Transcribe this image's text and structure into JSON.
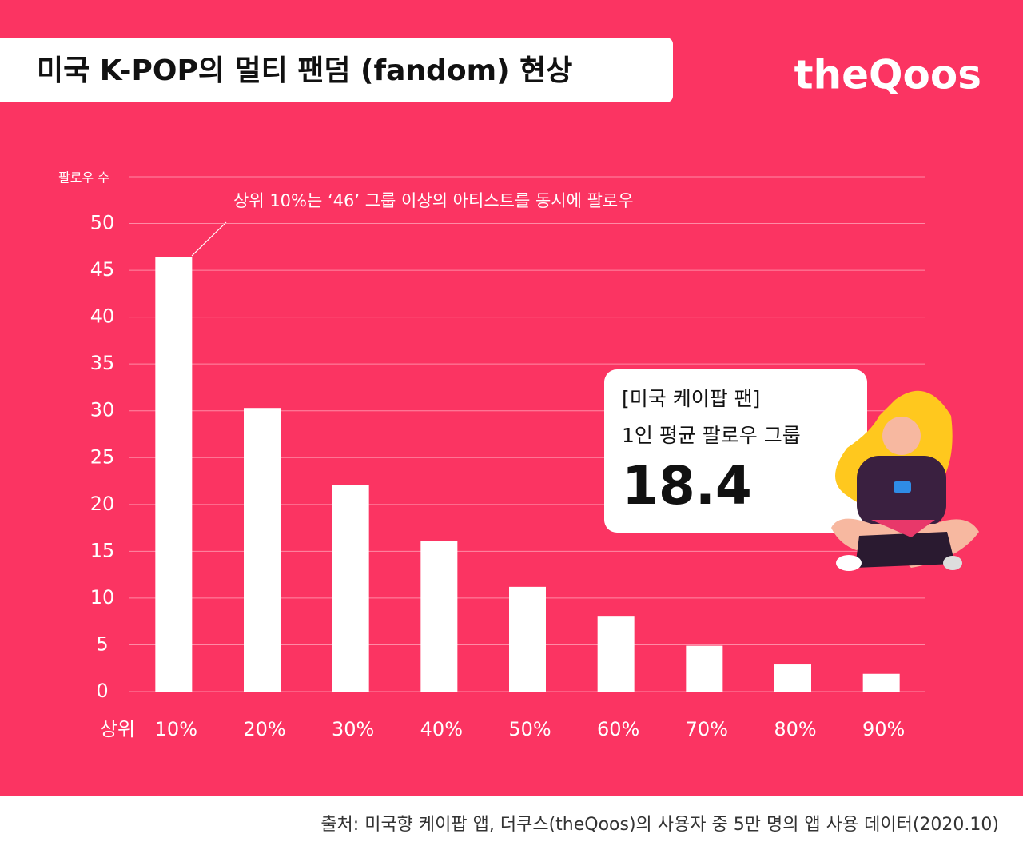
{
  "header": {
    "title": "미국 K-POP의 멀티 팬덤 (fandom) 현상",
    "logo": "theQoos"
  },
  "chart_data": {
    "type": "bar",
    "y_label": "팔로우 수",
    "x_label": "상위",
    "categories": [
      "10%",
      "20%",
      "30%",
      "40%",
      "50%",
      "60%",
      "70%",
      "80%",
      "90%"
    ],
    "values": [
      46.4,
      30.3,
      22.1,
      16.1,
      11.2,
      8.1,
      4.9,
      2.9,
      1.9
    ],
    "color": "#ffffff",
    "ylim": [
      0,
      55
    ],
    "yticks": [
      0,
      5,
      10,
      15,
      20,
      25,
      30,
      35,
      40,
      45,
      50
    ],
    "grid": true,
    "annotation": "상위 10%는 ‘46’ 그룹 이상의 아티스트를 동시에 팔로우"
  },
  "callout": {
    "heading": "[미국 케이팝 팬]",
    "subheading": "1인 평균 팔로우 그룹",
    "value": 18.4
  },
  "source": "출처: 미국향 케이팝 앱, 더쿠스(theQoos)의 사용자 중 5만 명의 앱 사용 데이터(2020.10)"
}
